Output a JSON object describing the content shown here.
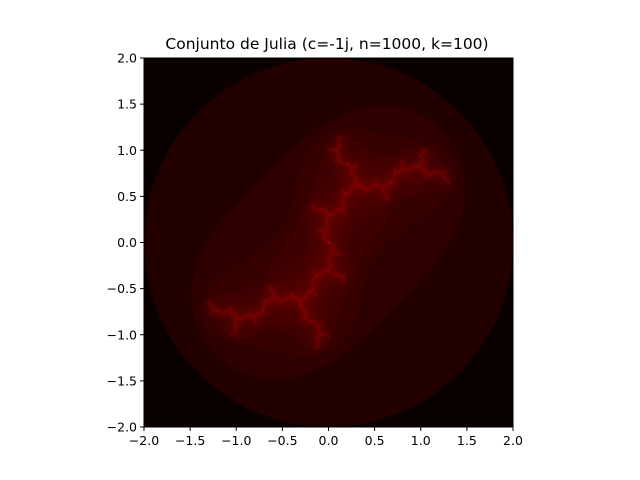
{
  "chart_data": {
    "type": "heatmap",
    "title": "Conjunto de Julia (c=-1j, n=1000, k=100)",
    "xlabel": "",
    "ylabel": "",
    "xlim": [
      -2.0,
      2.0
    ],
    "ylim": [
      -2.0,
      2.0
    ],
    "x_ticks": [
      "−2.0",
      "−1.5",
      "−1.0",
      "−0.5",
      "0.0",
      "0.5",
      "1.0",
      "1.5",
      "2.0"
    ],
    "y_ticks": [
      "2.0",
      "1.5",
      "1.0",
      "0.5",
      "0.0",
      "−0.5",
      "−1.0",
      "−1.5",
      "−2.0"
    ],
    "julia_c": {
      "re": 0.0,
      "im": -1.0
    },
    "grid_size": 1000,
    "max_iterations": 100,
    "colormap": "hot",
    "grid": false,
    "colors": {
      "background": "#0a0000",
      "set": "#ff2020"
    }
  }
}
